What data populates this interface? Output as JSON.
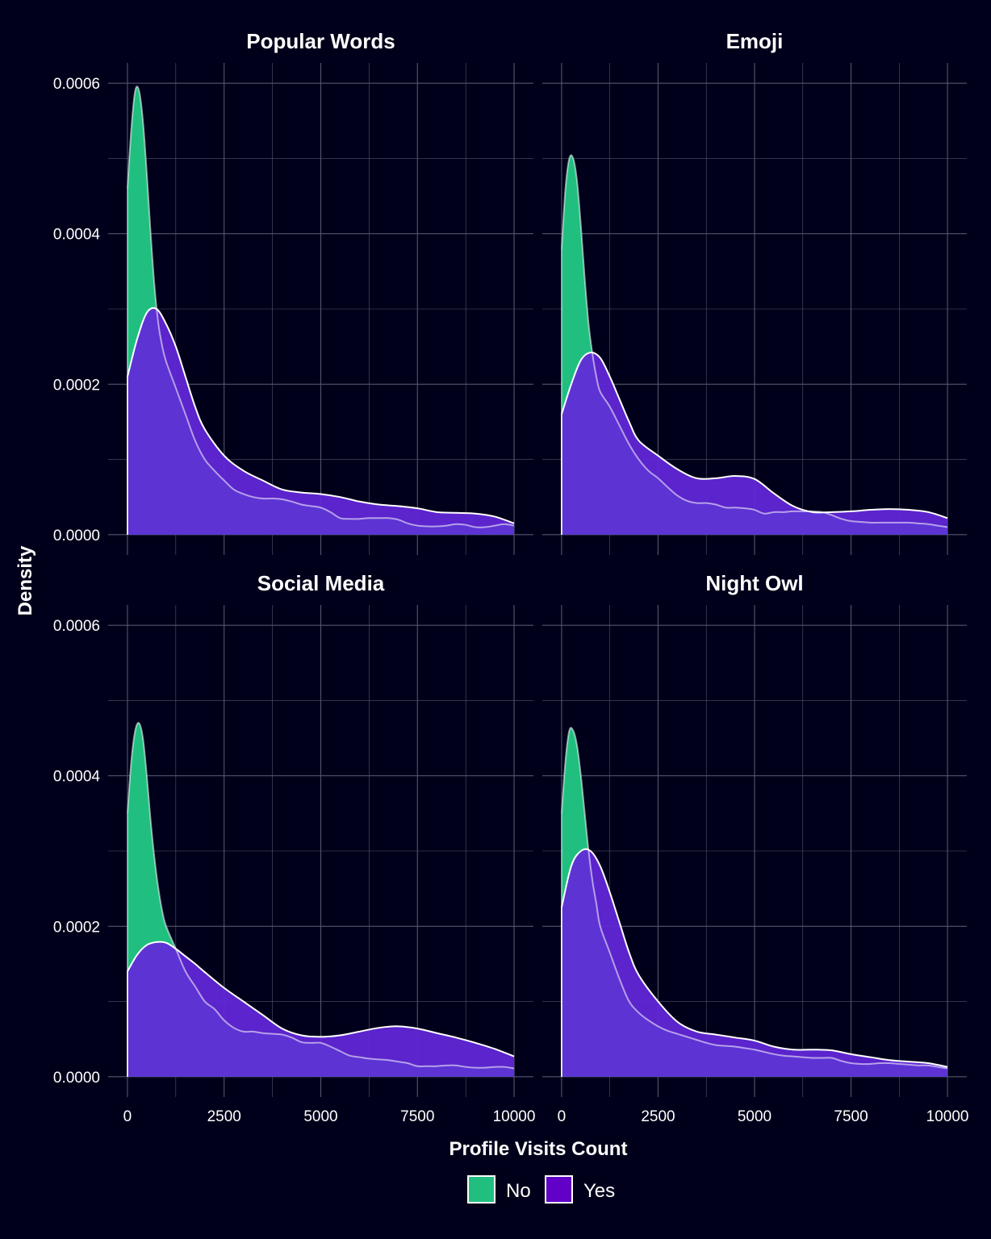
{
  "chart_data": {
    "type": "area",
    "layout": "facet-grid-2x2",
    "xlabel": "Profile Visits Count",
    "ylabel": "Density",
    "xlim": [
      0,
      10000
    ],
    "ylim": [
      0,
      0.0006
    ],
    "x_ticks": [
      0,
      2500,
      5000,
      7500,
      10000
    ],
    "x_tick_labels": [
      "0",
      "2500",
      "5000",
      "7500",
      "10000"
    ],
    "y_ticks": [
      0,
      0.0002,
      0.0004,
      0.0006
    ],
    "y_tick_labels": [
      "0.0000",
      "0.0002",
      "0.0004",
      "0.0006"
    ],
    "grid": true,
    "legend": {
      "position": "bottom",
      "entries": [
        {
          "label": "No",
          "color": "#20bf80"
        },
        {
          "label": "Yes",
          "color": "#6200c8"
        }
      ]
    },
    "colors": {
      "background": "#00001a",
      "no_fill": "#20bf80",
      "yes_fill": "#6200c8",
      "yes_overlap_fill": "#6327db",
      "outline": "#ffffff",
      "grid": "#55556e"
    },
    "facets": [
      {
        "title": "Popular Words",
        "series": [
          {
            "name": "No",
            "x": [
              0,
              100,
              200,
              300,
              400,
              500,
              600,
              700,
              800,
              900,
              1000,
              1250,
              1500,
              1750,
              2000,
              2250,
              2500,
              2750,
              3000,
              3250,
              3500,
              3750,
              4000,
              4250,
              4500,
              4750,
              5000,
              5250,
              5500,
              5750,
              6000,
              6250,
              6500,
              6750,
              7000,
              7250,
              7500,
              7750,
              8000,
              8250,
              8500,
              8750,
              9000,
              9250,
              9500,
              9750,
              10000
            ],
            "y": [
              0.00046,
              0.00054,
              0.00059,
              0.00059,
              0.00055,
              0.00048,
              0.0004,
              0.00033,
              0.00028,
              0.00025,
              0.00023,
              0.000195,
              0.00016,
              0.000125,
              0.0001,
              8.5e-05,
              7.2e-05,
              6e-05,
              5.4e-05,
              5e-05,
              4.8e-05,
              4.8e-05,
              4.7e-05,
              4.4e-05,
              4e-05,
              3.8e-05,
              3.6e-05,
              3e-05,
              2.2e-05,
              2.1e-05,
              2.1e-05,
              2.2e-05,
              2.2e-05,
              2.2e-05,
              2e-05,
              1.5e-05,
              1.2e-05,
              1.1e-05,
              1.1e-05,
              1.2e-05,
              1.4e-05,
              1.3e-05,
              1e-05,
              1e-05,
              1.2e-05,
              1.4e-05,
              1.2e-05
            ]
          },
          {
            "name": "Yes",
            "x": [
              0,
              250,
              500,
              750,
              1000,
              1250,
              1500,
              1750,
              2000,
              2500,
              3000,
              3500,
              4000,
              4500,
              5000,
              5500,
              6000,
              6500,
              7000,
              7500,
              8000,
              8500,
              9000,
              9500,
              10000
            ],
            "y": [
              0.00021,
              0.00026,
              0.000295,
              0.0003,
              0.00028,
              0.00025,
              0.00021,
              0.00017,
              0.00014,
              0.000105,
              8.5e-05,
              7.2e-05,
              6e-05,
              5.6e-05,
              5.4e-05,
              5e-05,
              4.4e-05,
              4e-05,
              3.8e-05,
              3.5e-05,
              3e-05,
              2.9e-05,
              2.8e-05,
              2.4e-05,
              1.5e-05
            ]
          }
        ]
      },
      {
        "title": "Emoji",
        "series": [
          {
            "name": "No",
            "x": [
              0,
              100,
              200,
              300,
              400,
              500,
              600,
              700,
              800,
              900,
              1000,
              1250,
              1500,
              1750,
              2000,
              2250,
              2500,
              2750,
              3000,
              3250,
              3500,
              3750,
              4000,
              4250,
              4500,
              4750,
              5000,
              5250,
              5500,
              5750,
              6000,
              6250,
              6500,
              6750,
              7000,
              7250,
              7500,
              7750,
              8000,
              8250,
              8500,
              8750,
              9000,
              9250,
              9500,
              9750,
              10000
            ],
            "y": [
              0.00038,
              0.00046,
              0.0005,
              0.0005,
              0.00047,
              0.00041,
              0.00034,
              0.00028,
              0.00024,
              0.00021,
              0.00019,
              0.00017,
              0.000145,
              0.00012,
              0.0001,
              8.5e-05,
              7.5e-05,
              6.3e-05,
              5.2e-05,
              4.5e-05,
              4.2e-05,
              4.2e-05,
              4e-05,
              3.6e-05,
              3.6e-05,
              3.5e-05,
              3.3e-05,
              2.8e-05,
              3e-05,
              3e-05,
              3.1e-05,
              3.1e-05,
              3.1e-05,
              3e-05,
              2.6e-05,
              2.1e-05,
              1.8e-05,
              1.7e-05,
              1.6e-05,
              1.6e-05,
              1.6e-05,
              1.6e-05,
              1.6e-05,
              1.5e-05,
              1.4e-05,
              1.2e-05,
              1e-05
            ]
          },
          {
            "name": "Yes",
            "x": [
              0,
              250,
              500,
              750,
              1000,
              1250,
              1500,
              1750,
              2000,
              2500,
              3000,
              3500,
              4000,
              4500,
              5000,
              5500,
              6000,
              6500,
              7000,
              7500,
              8000,
              8500,
              9000,
              9500,
              10000
            ],
            "y": [
              0.00016,
              0.0002,
              0.000232,
              0.000242,
              0.000235,
              0.00021,
              0.00018,
              0.00015,
              0.000125,
              0.000105,
              8.7e-05,
              7.5e-05,
              7.5e-05,
              7.8e-05,
              7.4e-05,
              5.5e-05,
              3.8e-05,
              3e-05,
              3e-05,
              3.1e-05,
              3.3e-05,
              3.4e-05,
              3.3e-05,
              3e-05,
              2.2e-05
            ]
          }
        ]
      },
      {
        "title": "Social Media",
        "series": [
          {
            "name": "No",
            "x": [
              0,
              100,
              200,
              300,
              400,
              500,
              600,
              700,
              800,
              900,
              1000,
              1250,
              1500,
              1750,
              2000,
              2250,
              2500,
              2750,
              3000,
              3250,
              3500,
              3750,
              4000,
              4250,
              4500,
              4750,
              5000,
              5250,
              5500,
              5750,
              6000,
              6250,
              6500,
              6750,
              7000,
              7250,
              7500,
              7750,
              8000,
              8250,
              8500,
              8750,
              9000,
              9250,
              9500,
              9750,
              10000
            ],
            "y": [
              0.00035,
              0.00042,
              0.00046,
              0.00047,
              0.00045,
              0.0004,
              0.00034,
              0.00029,
              0.00025,
              0.00022,
              0.0002,
              0.00017,
              0.00014,
              0.00012,
              0.0001,
              9e-05,
              7.5e-05,
              6.5e-05,
              6e-05,
              6e-05,
              5.8e-05,
              5.7e-05,
              5.6e-05,
              5.2e-05,
              4.6e-05,
              4.5e-05,
              4.5e-05,
              4e-05,
              3.4e-05,
              2.8e-05,
              2.6e-05,
              2.4e-05,
              2.3e-05,
              2.2e-05,
              2e-05,
              1.8e-05,
              1.4e-05,
              1.4e-05,
              1.4e-05,
              1.5e-05,
              1.5e-05,
              1.3e-05,
              1.2e-05,
              1.2e-05,
              1.3e-05,
              1.3e-05,
              1.1e-05
            ]
          },
          {
            "name": "Yes",
            "x": [
              0,
              250,
              500,
              750,
              1000,
              1250,
              1500,
              1750,
              2000,
              2500,
              3000,
              3500,
              4000,
              4500,
              5000,
              5500,
              6000,
              6500,
              7000,
              7500,
              8000,
              8500,
              9000,
              9500,
              10000
            ],
            "y": [
              0.00014,
              0.000162,
              0.000175,
              0.000179,
              0.000178,
              0.00017,
              0.00016,
              0.00015,
              0.000139,
              0.000118,
              0.0001,
              8.2e-05,
              6.4e-05,
              5.5e-05,
              5.3e-05,
              5.5e-05,
              6e-05,
              6.5e-05,
              6.7e-05,
              6.4e-05,
              5.8e-05,
              5.2e-05,
              4.5e-05,
              3.7e-05,
              2.7e-05
            ]
          }
        ]
      },
      {
        "title": "Night Owl",
        "series": [
          {
            "name": "No",
            "x": [
              0,
              100,
              200,
              300,
              400,
              500,
              600,
              700,
              800,
              900,
              1000,
              1250,
              1500,
              1750,
              2000,
              2250,
              2500,
              2750,
              3000,
              3250,
              3500,
              3750,
              4000,
              4250,
              4500,
              4750,
              5000,
              5250,
              5500,
              5750,
              6000,
              6250,
              6500,
              6750,
              7000,
              7250,
              7500,
              7750,
              8000,
              8250,
              8500,
              8750,
              9000,
              9250,
              9500,
              9750,
              10000
            ],
            "y": [
              0.00035,
              0.00042,
              0.00046,
              0.00046,
              0.00044,
              0.0004,
              0.00035,
              0.0003,
              0.00026,
              0.00023,
              0.0002,
              0.000165,
              0.00013,
              0.0001,
              8.5e-05,
              7.5e-05,
              6.7e-05,
              6.1e-05,
              5.7e-05,
              5.3e-05,
              4.9e-05,
              4.5e-05,
              4.2e-05,
              4.1e-05,
              4e-05,
              3.8e-05,
              3.6e-05,
              3.3e-05,
              3e-05,
              2.8e-05,
              2.7e-05,
              2.6e-05,
              2.5e-05,
              2.5e-05,
              2.5e-05,
              2.1e-05,
              1.8e-05,
              1.7e-05,
              1.7e-05,
              1.8e-05,
              1.8e-05,
              1.7e-05,
              1.6e-05,
              1.5e-05,
              1.5e-05,
              1.3e-05,
              1.1e-05
            ]
          },
          {
            "name": "Yes",
            "x": [
              0,
              250,
              500,
              750,
              1000,
              1250,
              1500,
              1750,
              2000,
              2500,
              3000,
              3500,
              4000,
              4500,
              5000,
              5500,
              6000,
              6500,
              7000,
              7500,
              8000,
              8500,
              9000,
              9500,
              10000
            ],
            "y": [
              0.000225,
              0.00028,
              0.0003,
              0.0003,
              0.00028,
              0.000245,
              0.000205,
              0.000165,
              0.000135,
              0.0001,
              7.3e-05,
              6e-05,
              5.6e-05,
              5.2e-05,
              4.8e-05,
              4e-05,
              3.6e-05,
              3.6e-05,
              3.5e-05,
              3e-05,
              2.6e-05,
              2.2e-05,
              2e-05,
              1.8e-05,
              1.3e-05
            ]
          }
        ]
      }
    ]
  }
}
